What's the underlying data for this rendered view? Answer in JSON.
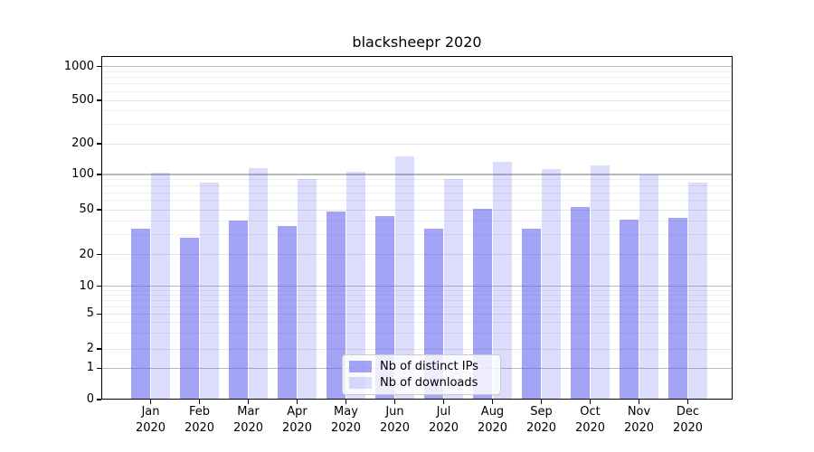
{
  "chart_data": {
    "type": "bar",
    "title": "blacksheepr 2020",
    "year_label": "2020",
    "months": [
      "Jan",
      "Feb",
      "Mar",
      "Apr",
      "May",
      "Jun",
      "Jul",
      "Aug",
      "Sep",
      "Oct",
      "Nov",
      "Dec"
    ],
    "series": [
      {
        "name": "Nb of distinct IPs",
        "color": "#a6a6f7",
        "fill_rgba": "rgba(90,90,240,0.55)",
        "values": [
          34,
          28,
          40,
          36,
          48,
          44,
          34,
          51,
          34,
          53,
          41,
          42
        ]
      },
      {
        "name": "Nb of downloads",
        "color": "#dcdcfa",
        "fill_rgba": "rgba(90,90,240,0.21)",
        "values": [
          105,
          85,
          116,
          91,
          106,
          151,
          92,
          133,
          113,
          122,
          100,
          85
        ]
      }
    ],
    "yscale": "symlog",
    "yticks": [
      0,
      1,
      2,
      5,
      10,
      20,
      50,
      100,
      200,
      500,
      1000
    ],
    "minor_yticks": [
      3,
      4,
      6,
      7,
      8,
      9,
      30,
      40,
      60,
      70,
      80,
      90,
      300,
      400,
      600,
      700,
      800,
      900
    ],
    "ylim": [
      0,
      1250
    ],
    "grid": true,
    "legend_position": "lower center"
  }
}
